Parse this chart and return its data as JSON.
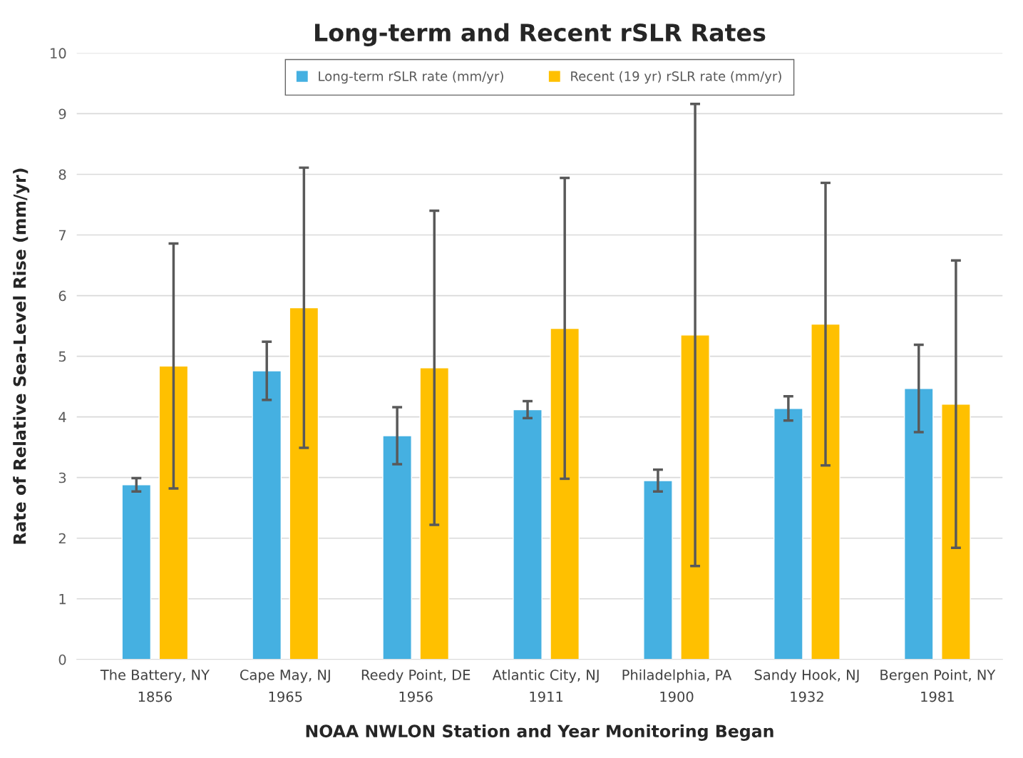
{
  "chart_data": {
    "type": "bar",
    "title": "Long-term and Recent rSLR Rates",
    "xlabel": "NOAA NWLON Station and Year Monitoring Began",
    "ylabel": "Rate of Relative Sea-Level Rise (mm/yr)",
    "categories": [
      "The Battery, NY\n1856",
      "Cape May, NJ\n1965",
      "Reedy Point, DE\n1956",
      "Atlantic City, NJ\n1911",
      "Philadelphia, PA\n1900",
      "Sandy Hook, NJ\n1932",
      "Bergen Point, NY\n1981"
    ],
    "series": [
      {
        "name": "Long-term rSLR rate (mm/yr)",
        "color": "#45b0e1",
        "values": [
          2.88,
          4.76,
          3.69,
          4.12,
          2.95,
          4.14,
          4.47
        ],
        "errors": [
          0.11,
          0.48,
          0.47,
          0.14,
          0.18,
          0.2,
          0.72
        ]
      },
      {
        "name": "Recent (19 yr) rSLR rate (mm/yr)",
        "color": "#ffc000",
        "values": [
          4.84,
          5.8,
          4.81,
          5.46,
          5.35,
          5.53,
          4.21
        ],
        "errors": [
          2.02,
          2.31,
          2.59,
          2.48,
          3.81,
          2.33,
          2.37
        ]
      }
    ],
    "ylim": [
      0,
      10
    ],
    "yticks": [
      0,
      1,
      2,
      3,
      4,
      5,
      6,
      7,
      8,
      9,
      10
    ],
    "grid": "y",
    "legend": "top"
  }
}
